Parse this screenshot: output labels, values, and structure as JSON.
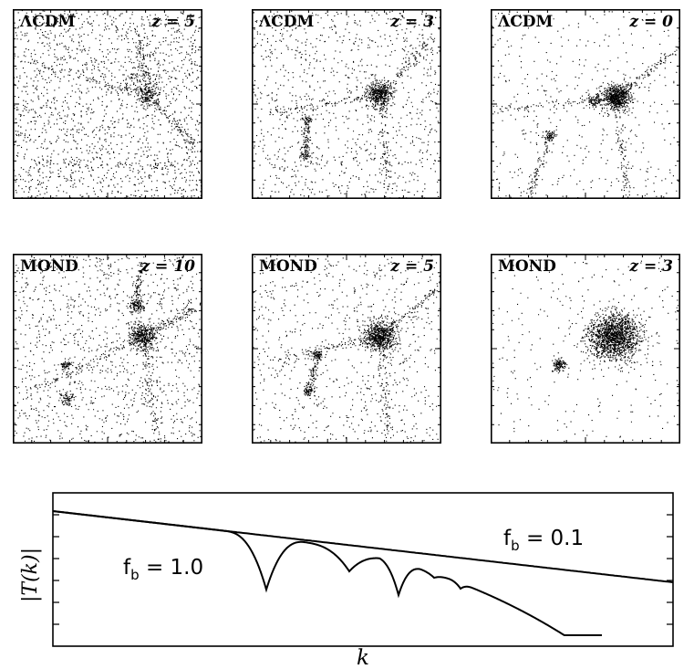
{
  "panels": [
    {
      "model": "ΛCDM",
      "redshift": "z = 5"
    },
    {
      "model": "ΛCDM",
      "redshift": "z = 3"
    },
    {
      "model": "ΛCDM",
      "redshift": "z = 0"
    },
    {
      "model": "MOND",
      "redshift": "z = 10"
    },
    {
      "model": "MOND",
      "redshift": "z = 5"
    },
    {
      "model": "MOND",
      "redshift": "z = 3"
    }
  ],
  "chart_data": {
    "type": "line",
    "title": "",
    "xlabel": "k",
    "ylabel": "|T(k)|",
    "grid": false,
    "legend": "none",
    "series": [
      {
        "label": "fb = 1.0",
        "label_main": "f",
        "label_sub": "b",
        "label_rest": " = 1.0"
      },
      {
        "label": "fb = 0.1",
        "label_main": "f",
        "label_sub": "b",
        "label_rest": " = 0.1"
      }
    ]
  }
}
